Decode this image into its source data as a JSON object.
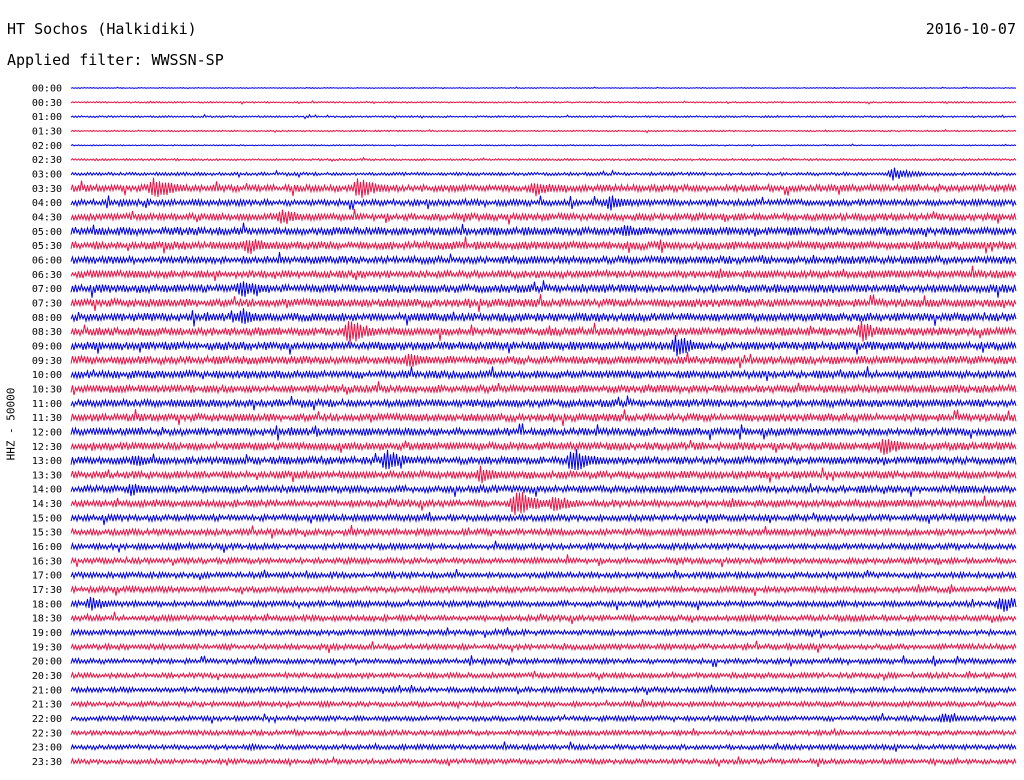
{
  "header": {
    "station": "HT Sochos (Halkidiki)",
    "date": "2016-10-07",
    "filter": "Applied filter: WWSSN-SP"
  },
  "chart_data": {
    "type": "line",
    "title": "HT Sochos (Halkidiki)",
    "date": "2016-10-07",
    "ylabel": "HHZ - 50000",
    "xlabel": "",
    "colors": {
      "blue": "#0000ee",
      "red": "#ee1144"
    },
    "row_labels": [
      "00:00",
      "00:30",
      "01:00",
      "01:30",
      "02:00",
      "02:30",
      "03:00",
      "03:30",
      "04:00",
      "04:30",
      "05:00",
      "05:30",
      "06:00",
      "06:30",
      "07:00",
      "07:30",
      "08:00",
      "08:30",
      "09:00",
      "09:30",
      "10:00",
      "10:30",
      "11:00",
      "11:30",
      "12:00",
      "12:30",
      "13:00",
      "13:30",
      "14:00",
      "14:30",
      "15:00",
      "15:30",
      "16:00",
      "16:30",
      "17:00",
      "17:30",
      "18:00",
      "18:30",
      "19:00",
      "19:30",
      "20:00",
      "20:30",
      "21:00",
      "21:30",
      "22:00",
      "22:30",
      "23:00",
      "23:30"
    ],
    "row_noise_level": [
      0.3,
      0.5,
      0.6,
      0.5,
      0.4,
      0.7,
      1.1,
      2.4,
      2.2,
      2.4,
      2.8,
      2.8,
      2.6,
      2.6,
      2.8,
      2.8,
      2.8,
      2.8,
      2.8,
      2.8,
      2.6,
      2.6,
      2.6,
      2.6,
      2.6,
      2.6,
      2.6,
      2.6,
      2.4,
      2.4,
      2.2,
      2.2,
      2.0,
      2.0,
      2.0,
      2.0,
      2.0,
      2.0,
      1.9,
      1.9,
      1.8,
      1.8,
      1.8,
      1.8,
      1.7,
      1.7,
      1.7,
      1.7
    ],
    "events": [
      {
        "row": 7,
        "minute": 2.6,
        "amp": 13
      },
      {
        "row": 7,
        "minute": 9.1,
        "amp": 12
      },
      {
        "row": 7,
        "minute": 14.7,
        "amp": 9
      },
      {
        "row": 7,
        "minute": 30.4,
        "amp": 10
      },
      {
        "row": 6,
        "minute": 26.1,
        "amp": 7
      },
      {
        "row": 6,
        "minute": 47.5,
        "amp": 9
      },
      {
        "row": 8,
        "minute": 17.1,
        "amp": 9
      },
      {
        "row": 8,
        "minute": 40.2,
        "amp": 10
      },
      {
        "row": 9,
        "minute": 6.7,
        "amp": 9
      },
      {
        "row": 10,
        "minute": 17.5,
        "amp": 8
      },
      {
        "row": 10,
        "minute": 48.3,
        "amp": 8
      },
      {
        "row": 10,
        "minute": 53.8,
        "amp": 8
      },
      {
        "row": 11,
        "minute": 5.6,
        "amp": 10
      },
      {
        "row": 13,
        "minute": 54.0,
        "amp": 8
      },
      {
        "row": 13,
        "minute": 58.6,
        "amp": 10
      },
      {
        "row": 14,
        "minute": 5.4,
        "amp": 11
      },
      {
        "row": 15,
        "minute": 31.5,
        "amp": 7
      },
      {
        "row": 16,
        "minute": 5.4,
        "amp": 10
      },
      {
        "row": 16,
        "minute": 58.2,
        "amp": 7
      },
      {
        "row": 17,
        "minute": 8.8,
        "amp": 14
      },
      {
        "row": 17,
        "minute": 25.1,
        "amp": 11
      },
      {
        "row": 17,
        "minute": 58.6,
        "amp": 7
      },
      {
        "row": 18,
        "minute": 19.2,
        "amp": 12
      },
      {
        "row": 18,
        "minute": 56.9,
        "amp": 16
      },
      {
        "row": 19,
        "minute": 10.7,
        "amp": 10
      },
      {
        "row": 20,
        "minute": 42.6,
        "amp": 14
      },
      {
        "row": 20,
        "minute": 43.0,
        "amp": 22
      },
      {
        "row": 21,
        "minute": 43.3,
        "amp": 19
      },
      {
        "row": 22,
        "minute": 43.0,
        "amp": 14
      },
      {
        "row": 22,
        "minute": 37.3,
        "amp": 7
      },
      {
        "row": 23,
        "minute": 38.3,
        "amp": 8
      },
      {
        "row": 24,
        "minute": 37.1,
        "amp": 9
      },
      {
        "row": 25,
        "minute": 52.3,
        "amp": 16
      },
      {
        "row": 25,
        "minute": 25.8,
        "amp": 11
      },
      {
        "row": 26,
        "minute": 15.9,
        "amp": 14
      },
      {
        "row": 26,
        "minute": 10.0,
        "amp": 12
      },
      {
        "row": 26,
        "minute": 2.0,
        "amp": 7
      },
      {
        "row": 27,
        "minute": 13.0,
        "amp": 10
      },
      {
        "row": 28,
        "minute": 1.9,
        "amp": 7
      },
      {
        "row": 29,
        "minute": 14.1,
        "amp": 16
      },
      {
        "row": 29,
        "minute": 15.3,
        "amp": 10
      },
      {
        "row": 30,
        "minute": 42.9,
        "amp": 7
      },
      {
        "row": 36,
        "minute": 29.5,
        "amp": 10
      },
      {
        "row": 36,
        "minute": 31.8,
        "amp": 8
      },
      {
        "row": 36,
        "minute": 0.6,
        "amp": 8
      },
      {
        "row": 44,
        "minute": 27.7,
        "amp": 6
      },
      {
        "row": 46,
        "minute": 46.1,
        "amp": 6
      }
    ]
  }
}
